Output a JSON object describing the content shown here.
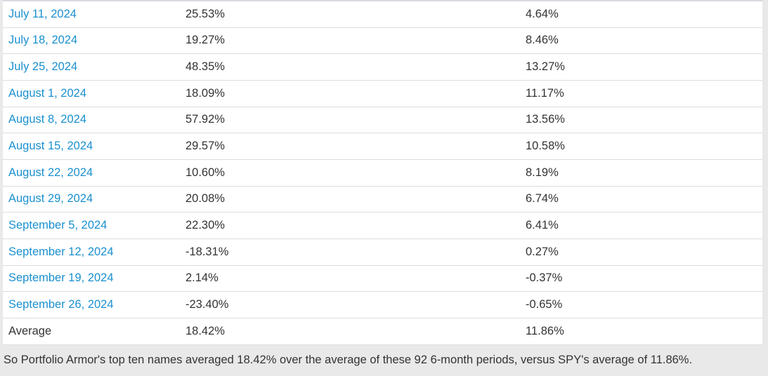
{
  "table": {
    "rows": [
      {
        "label": "July 11, 2024",
        "portfolio_return": "25.53%",
        "spy_return": "4.64%",
        "link": true
      },
      {
        "label": "July 18, 2024",
        "portfolio_return": "19.27%",
        "spy_return": "8.46%",
        "link": true
      },
      {
        "label": "July 25, 2024",
        "portfolio_return": "48.35%",
        "spy_return": "13.27%",
        "link": true
      },
      {
        "label": "August 1, 2024",
        "portfolio_return": "18.09%",
        "spy_return": "11.17%",
        "link": true
      },
      {
        "label": "August 8, 2024",
        "portfolio_return": "57.92%",
        "spy_return": "13.56%",
        "link": true
      },
      {
        "label": "August 15, 2024",
        "portfolio_return": "29.57%",
        "spy_return": "10.58%",
        "link": true
      },
      {
        "label": "August 22, 2024",
        "portfolio_return": "10.60%",
        "spy_return": "8.19%",
        "link": true
      },
      {
        "label": "August 29, 2024",
        "portfolio_return": "20.08%",
        "spy_return": "6.74%",
        "link": true
      },
      {
        "label": "September 5, 2024",
        "portfolio_return": "22.30%",
        "spy_return": "6.41%",
        "link": true
      },
      {
        "label": "September 12, 2024",
        "portfolio_return": "-18.31%",
        "spy_return": "0.27%",
        "link": true
      },
      {
        "label": "September 19, 2024",
        "portfolio_return": "2.14%",
        "spy_return": "-0.37%",
        "link": true
      },
      {
        "label": "September 26, 2024",
        "portfolio_return": "-23.40%",
        "spy_return": "-0.65%",
        "link": true
      },
      {
        "label": "Average",
        "portfolio_return": "18.42%",
        "spy_return": "11.86%",
        "link": false
      }
    ]
  },
  "footer": {
    "text": "So Portfolio Armor's top ten names averaged 18.42% over the average of these 92 6-month periods, versus SPY's average of 11.86%."
  },
  "colors": {
    "link_blue": "#1a90cf",
    "text_dark": "#333333",
    "row_border": "#dddde2",
    "table_top_border": "#d9d9e0",
    "page_background": "#e9e9e9",
    "table_background": "#ffffff"
  }
}
